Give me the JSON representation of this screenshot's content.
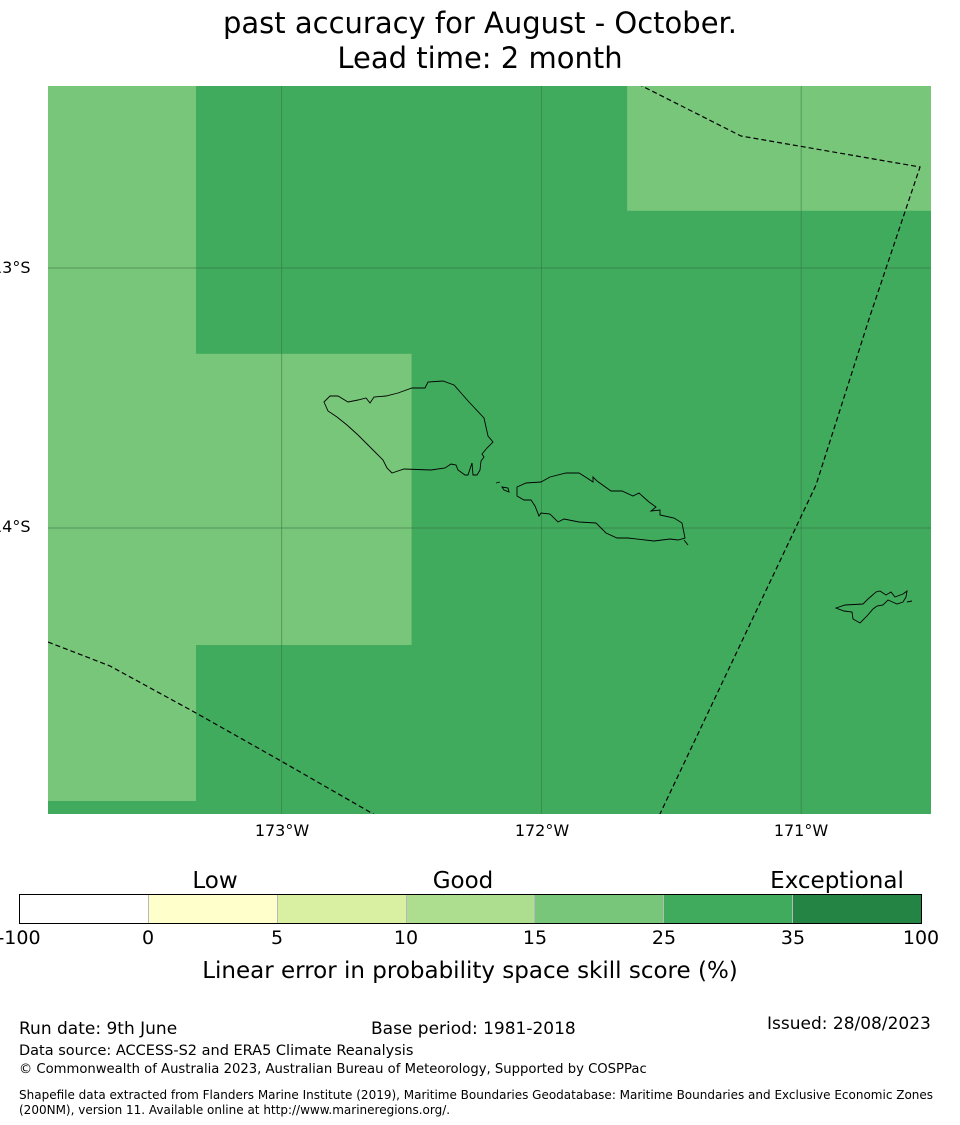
{
  "title": {
    "line1": "past accuracy for August - October.",
    "line2": "Lead time: 2 month"
  },
  "map": {
    "grid_lon": [
      -173,
      -172,
      -171
    ],
    "grid_lat": [
      -13,
      -14
    ],
    "x_ticks": [
      "173°W",
      "172°W",
      "171°W"
    ],
    "y_ticks": [
      "13°S",
      "14°S"
    ],
    "skill_cells": [
      {
        "category": "15-25",
        "lon": [
          -173.9,
          -173.33
        ],
        "lat": [
          -12.3,
          -15.05
        ]
      },
      {
        "category": "25-35",
        "lon": [
          -173.9,
          -173.33
        ],
        "lat": [
          -15.05,
          -15.1
        ]
      },
      {
        "category": "15-25",
        "lon": [
          -173.33,
          -172.5
        ],
        "lat": [
          -13.33,
          -14.45
        ]
      },
      {
        "category": "15-25",
        "lon": [
          -171.67,
          -170.5
        ],
        "lat": [
          -12.3,
          -12.78
        ]
      }
    ],
    "background_category": "25-35",
    "colors": {
      "grid": "#2f6d3d",
      "coast": "#000000",
      "eez": "#000000"
    }
  },
  "legend": {
    "categories": [
      "Low",
      "Good",
      "Exceptional"
    ],
    "tick_labels": [
      "-100",
      "0",
      "5",
      "10",
      "15",
      "25",
      "35",
      "100"
    ],
    "bins": [
      {
        "range": "-100-0",
        "color": "#ffffff"
      },
      {
        "range": "0-5",
        "color": "#ffffcc"
      },
      {
        "range": "5-10",
        "color": "#d9f0a3"
      },
      {
        "range": "10-15",
        "color": "#addd8e"
      },
      {
        "range": "15-25",
        "color": "#78c679"
      },
      {
        "range": "25-35",
        "color": "#41ab5d"
      },
      {
        "range": "35-100",
        "color": "#238443"
      }
    ],
    "title": "Linear error in probability space skill score (%)"
  },
  "footer": {
    "run_date": "Run date: 9th June",
    "base_period": "Base period: 1981-2018",
    "issued": "Issued: 28/08/2023",
    "data_source": "Data source: ACCESS-S2 and ERA5 Climate Reanalysis",
    "copyright": "© Commonwealth of Australia 2023, Australian Bureau of Meteorology, Supported by COSPPac",
    "shapefile_line1": "Shapefile data extracted from Flanders Marine Institute (2019), Maritime Boundaries Geodatabase: Maritime Boundaries and Exclusive Economic Zones",
    "shapefile_line2": "(200NM), version 11. Available online at http://www.marineregions.org/."
  }
}
